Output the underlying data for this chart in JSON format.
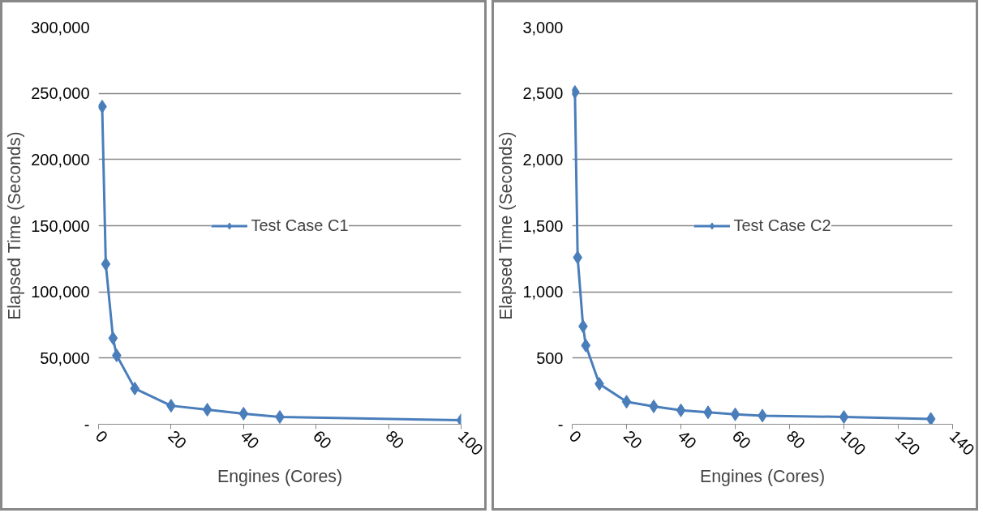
{
  "chart_data": [
    {
      "type": "line",
      "xlabel": "Engines (Cores)",
      "ylabel": "Elapsed Time (Seconds)",
      "x": [
        1,
        2,
        4,
        5,
        10,
        20,
        30,
        40,
        50,
        100
      ],
      "series": [
        {
          "name": "Test Case C1",
          "color": "#4a7ebb",
          "values": [
            240000,
            121000,
            65000,
            52000,
            27000,
            14000,
            11000,
            8000,
            5500,
            3000
          ]
        }
      ],
      "xlim": [
        0,
        100
      ],
      "xticks": [
        0,
        20,
        40,
        60,
        80,
        100
      ],
      "ylim": [
        0,
        300000
      ],
      "yticks": [
        {
          "value": 0,
          "label": "-"
        },
        {
          "value": 50000,
          "label": "50,000"
        },
        {
          "value": 100000,
          "label": "100,000"
        },
        {
          "value": 150000,
          "label": "150,000"
        },
        {
          "value": 200000,
          "label": "200,000"
        },
        {
          "value": 250000,
          "label": "250,000"
        },
        {
          "value": 300000,
          "label": "300,000"
        }
      ],
      "grid": "y",
      "legend": "center",
      "marker": "diamond",
      "line_style": "solid"
    },
    {
      "type": "line",
      "xlabel": "Engines (Cores)",
      "ylabel": "Elapsed Time (Seconds)",
      "x": [
        1,
        2,
        4,
        5,
        10,
        20,
        30,
        40,
        50,
        60,
        70,
        100,
        132
      ],
      "series": [
        {
          "name": "Test Case C2",
          "color": "#4a7ebb",
          "values": [
            2510,
            1260,
            740,
            595,
            305,
            170,
            135,
            105,
            90,
            75,
            65,
            55,
            40
          ]
        }
      ],
      "xlim": [
        0,
        140
      ],
      "xticks": [
        0,
        20,
        40,
        60,
        80,
        100,
        120,
        140
      ],
      "ylim": [
        0,
        3000
      ],
      "yticks": [
        {
          "value": 0,
          "label": "-"
        },
        {
          "value": 500,
          "label": "500"
        },
        {
          "value": 1000,
          "label": "1,000"
        },
        {
          "value": 1500,
          "label": "1,500"
        },
        {
          "value": 2000,
          "label": "2,000"
        },
        {
          "value": 2500,
          "label": "2,500"
        },
        {
          "value": 3000,
          "label": "3,000"
        }
      ],
      "grid": "y",
      "legend": "center",
      "marker": "diamond",
      "line_style": "solid"
    }
  ]
}
